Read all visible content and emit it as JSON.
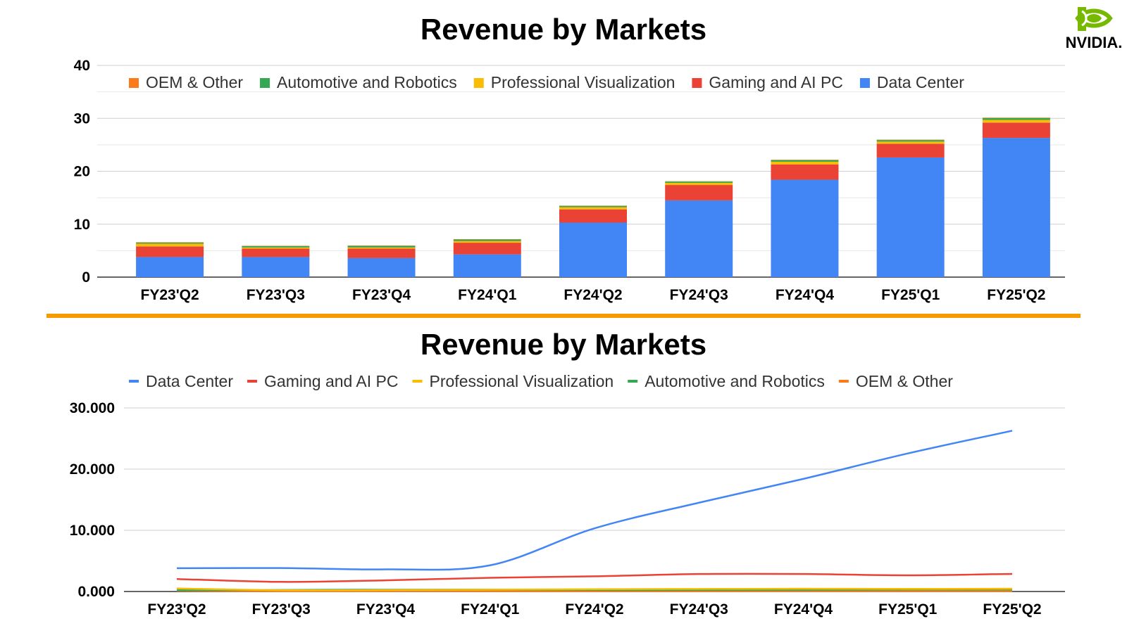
{
  "brand": {
    "logo_text": "NVIDIA.",
    "logo_icon": "nvidia-eye-icon",
    "logo_color": "#76b900"
  },
  "divider_color": "#f59b00",
  "chart_data": [
    {
      "type": "bar",
      "stacked": true,
      "title": "Revenue by Markets",
      "categories": [
        "FY23'Q2",
        "FY23'Q3",
        "FY23'Q4",
        "FY24'Q1",
        "FY24'Q2",
        "FY24'Q3",
        "FY24'Q4",
        "FY25'Q1",
        "FY25'Q2"
      ],
      "ylim": [
        0,
        40
      ],
      "yticks": [
        "0",
        "10",
        "20",
        "30",
        "40"
      ],
      "grid": true,
      "legend_position": "top",
      "legend_order": [
        "OEM & Other",
        "Automotive and Robotics",
        "Professional Visualization",
        "Gaming and AI PC",
        "Data Center"
      ],
      "series": [
        {
          "name": "Data Center",
          "color": "#4285f4",
          "values": [
            3.8,
            3.8,
            3.6,
            4.3,
            10.3,
            14.5,
            18.4,
            22.6,
            26.3
          ]
        },
        {
          "name": "Gaming and AI PC",
          "color": "#ea4335",
          "values": [
            2.0,
            1.6,
            1.8,
            2.2,
            2.5,
            2.9,
            2.9,
            2.6,
            2.9
          ]
        },
        {
          "name": "Professional Visualization",
          "color": "#fbbc04",
          "values": [
            0.5,
            0.2,
            0.2,
            0.3,
            0.4,
            0.4,
            0.5,
            0.4,
            0.5
          ]
        },
        {
          "name": "Automotive and Robotics",
          "color": "#34a853",
          "values": [
            0.2,
            0.25,
            0.3,
            0.3,
            0.25,
            0.25,
            0.3,
            0.3,
            0.35
          ]
        },
        {
          "name": "OEM & Other",
          "color": "#fa7b17",
          "values": [
            0.1,
            0.07,
            0.08,
            0.08,
            0.07,
            0.07,
            0.09,
            0.08,
            0.09
          ]
        }
      ]
    },
    {
      "type": "line",
      "title": "Revenue by Markets",
      "categories": [
        "FY23'Q2",
        "FY23'Q3",
        "FY23'Q4",
        "FY24'Q1",
        "FY24'Q2",
        "FY24'Q3",
        "FY24'Q4",
        "FY25'Q1",
        "FY25'Q2"
      ],
      "ylim": [
        0,
        30000
      ],
      "yticks": [
        "0.000",
        "10.000",
        "20.000",
        "30.000"
      ],
      "grid": true,
      "legend_position": "top",
      "series": [
        {
          "name": "Data Center",
          "color": "#4285f4",
          "values": [
            3806,
            3833,
            3616,
            4284,
            10323,
            14514,
            18404,
            22563,
            26272
          ]
        },
        {
          "name": "Gaming and AI PC",
          "color": "#ea4335",
          "values": [
            2042,
            1574,
            1831,
            2240,
            2486,
            2856,
            2865,
            2647,
            2880
          ]
        },
        {
          "name": "Professional Visualization",
          "color": "#fbbc04",
          "values": [
            496,
            200,
            226,
            295,
            379,
            416,
            463,
            427,
            454
          ]
        },
        {
          "name": "Automotive and Robotics",
          "color": "#34a853",
          "values": [
            220,
            251,
            294,
            296,
            253,
            261,
            281,
            329,
            346
          ]
        },
        {
          "name": "OEM & Other",
          "color": "#fa7b17",
          "values": [
            140,
            73,
            84,
            77,
            66,
            73,
            90,
            78,
            88
          ]
        }
      ]
    }
  ]
}
